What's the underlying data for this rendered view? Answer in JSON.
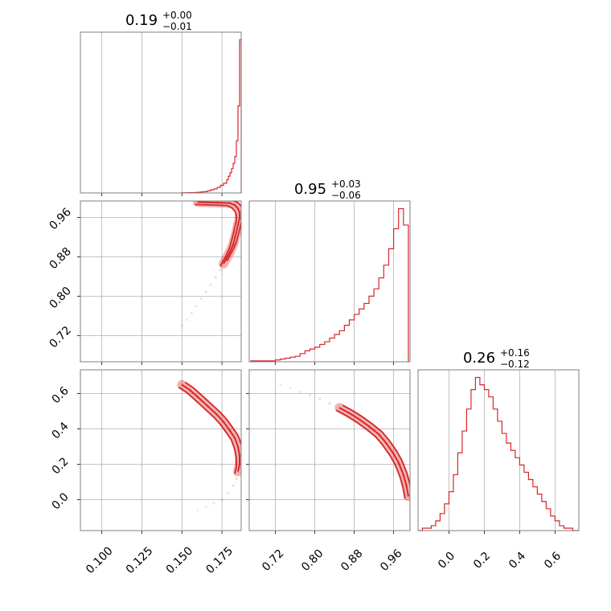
{
  "chart_data": {
    "type": "corner",
    "color": "#d62728",
    "grid": true,
    "parameters": [
      {
        "title_value": "0.19",
        "title_plus": "+0.00",
        "title_minus": "−0.01",
        "range": [
          0.0866,
          0.187
        ],
        "ticks": [
          0.1,
          0.125,
          0.15,
          0.175
        ],
        "tick_labels": [
          "0.100",
          "0.125",
          "0.150",
          "0.175"
        ]
      },
      {
        "title_value": "0.95",
        "title_plus": "+0.03",
        "title_minus": "−0.06",
        "range": [
          0.6667,
          0.9933
        ],
        "ticks": [
          0.72,
          0.8,
          0.88,
          0.96
        ],
        "tick_labels": [
          "0.72",
          "0.80",
          "0.88",
          "0.96"
        ]
      },
      {
        "title_value": "0.26",
        "title_plus": "+0.16",
        "title_minus": "−0.12",
        "range": [
          -0.1746,
          0.7347
        ],
        "ticks": [
          0.0,
          0.2,
          0.4,
          0.6
        ],
        "tick_labels": [
          "0.0",
          "0.2",
          "0.4",
          "0.6"
        ]
      }
    ],
    "histograms": [
      {
        "param": 0,
        "edges": [
          0.15,
          0.154,
          0.158,
          0.16,
          0.162,
          0.164,
          0.166,
          0.168,
          0.17,
          0.172,
          0.174,
          0.176,
          0.178,
          0.179,
          0.18,
          0.181,
          0.182,
          0.183,
          0.184,
          0.185,
          0.186,
          0.187
        ],
        "counts": [
          0.5,
          1,
          1.5,
          2,
          3,
          4,
          6,
          9,
          12,
          16,
          22,
          28,
          38,
          48,
          58,
          70,
          85,
          105,
          150,
          250,
          440
        ]
      },
      {
        "param": 1,
        "edges": [
          0.67,
          0.69,
          0.71,
          0.72,
          0.73,
          0.74,
          0.75,
          0.76,
          0.77,
          0.78,
          0.79,
          0.8,
          0.81,
          0.82,
          0.83,
          0.84,
          0.85,
          0.86,
          0.87,
          0.88,
          0.89,
          0.9,
          0.91,
          0.92,
          0.93,
          0.94,
          0.95,
          0.96,
          0.97,
          0.98,
          0.99
        ],
        "counts": [
          1,
          1,
          1,
          2,
          3,
          4,
          5,
          6,
          9,
          12,
          14,
          16,
          19,
          22,
          26,
          30,
          34,
          40,
          46,
          52,
          58,
          64,
          72,
          80,
          92,
          106,
          124,
          146,
          168,
          150
        ]
      },
      {
        "param": 2,
        "edges": [
          -0.175,
          -0.15,
          -0.125,
          -0.1,
          -0.075,
          -0.05,
          -0.025,
          0.0,
          0.025,
          0.05,
          0.075,
          0.1,
          0.125,
          0.15,
          0.175,
          0.2,
          0.225,
          0.25,
          0.275,
          0.3,
          0.325,
          0.35,
          0.375,
          0.4,
          0.425,
          0.45,
          0.475,
          0.5,
          0.525,
          0.55,
          0.575,
          0.6,
          0.625,
          0.65,
          0.675,
          0.7,
          0.735
        ],
        "counts": [
          0,
          1,
          1,
          2,
          4,
          7,
          11,
          16,
          23,
          32,
          41,
          50,
          58,
          63,
          60,
          58,
          55,
          50,
          45,
          40,
          36,
          33,
          30,
          27,
          24,
          21,
          18,
          15,
          12,
          9,
          6,
          4,
          2,
          1,
          1,
          0
        ]
      }
    ],
    "pair_points": [
      {
        "x_param": 0,
        "y_param": 1,
        "points": [
          [
            0.15,
            0.74
          ],
          [
            0.153,
            0.752
          ],
          [
            0.156,
            0.766
          ],
          [
            0.159,
            0.78
          ],
          [
            0.162,
            0.795
          ],
          [
            0.165,
            0.809
          ],
          [
            0.168,
            0.823
          ],
          [
            0.171,
            0.838
          ],
          [
            0.174,
            0.853
          ],
          [
            0.176,
            0.866
          ],
          [
            0.178,
            0.878
          ],
          [
            0.18,
            0.89
          ],
          [
            0.182,
            0.905
          ],
          [
            0.183,
            0.918
          ],
          [
            0.184,
            0.93
          ],
          [
            0.185,
            0.945
          ],
          [
            0.186,
            0.958
          ],
          [
            0.186,
            0.97
          ],
          [
            0.185,
            0.978
          ],
          [
            0.183,
            0.985
          ],
          [
            0.18,
            0.989
          ],
          [
            0.172,
            0.99
          ],
          [
            0.16,
            0.991
          ]
        ]
      },
      {
        "x_param": 0,
        "y_param": 2,
        "points": [
          [
            0.16,
            -0.06
          ],
          [
            0.165,
            -0.04
          ],
          [
            0.17,
            -0.02
          ],
          [
            0.175,
            0.0
          ],
          [
            0.179,
            0.04
          ],
          [
            0.182,
            0.08
          ],
          [
            0.184,
            0.12
          ],
          [
            0.185,
            0.16
          ],
          [
            0.186,
            0.2
          ],
          [
            0.186,
            0.25
          ],
          [
            0.185,
            0.3
          ],
          [
            0.183,
            0.35
          ],
          [
            0.18,
            0.39
          ],
          [
            0.176,
            0.44
          ],
          [
            0.172,
            0.48
          ],
          [
            0.166,
            0.53
          ],
          [
            0.16,
            0.58
          ],
          [
            0.155,
            0.62
          ],
          [
            0.15,
            0.65
          ]
        ]
      },
      {
        "x_param": 1,
        "y_param": 2,
        "points": [
          [
            0.73,
            0.65
          ],
          [
            0.75,
            0.63
          ],
          [
            0.77,
            0.61
          ],
          [
            0.79,
            0.59
          ],
          [
            0.81,
            0.57
          ],
          [
            0.83,
            0.545
          ],
          [
            0.85,
            0.52
          ],
          [
            0.87,
            0.49
          ],
          [
            0.89,
            0.455
          ],
          [
            0.91,
            0.415
          ],
          [
            0.93,
            0.37
          ],
          [
            0.945,
            0.32
          ],
          [
            0.96,
            0.26
          ],
          [
            0.97,
            0.21
          ],
          [
            0.98,
            0.14
          ],
          [
            0.986,
            0.08
          ],
          [
            0.99,
            0.02
          ]
        ]
      }
    ]
  }
}
